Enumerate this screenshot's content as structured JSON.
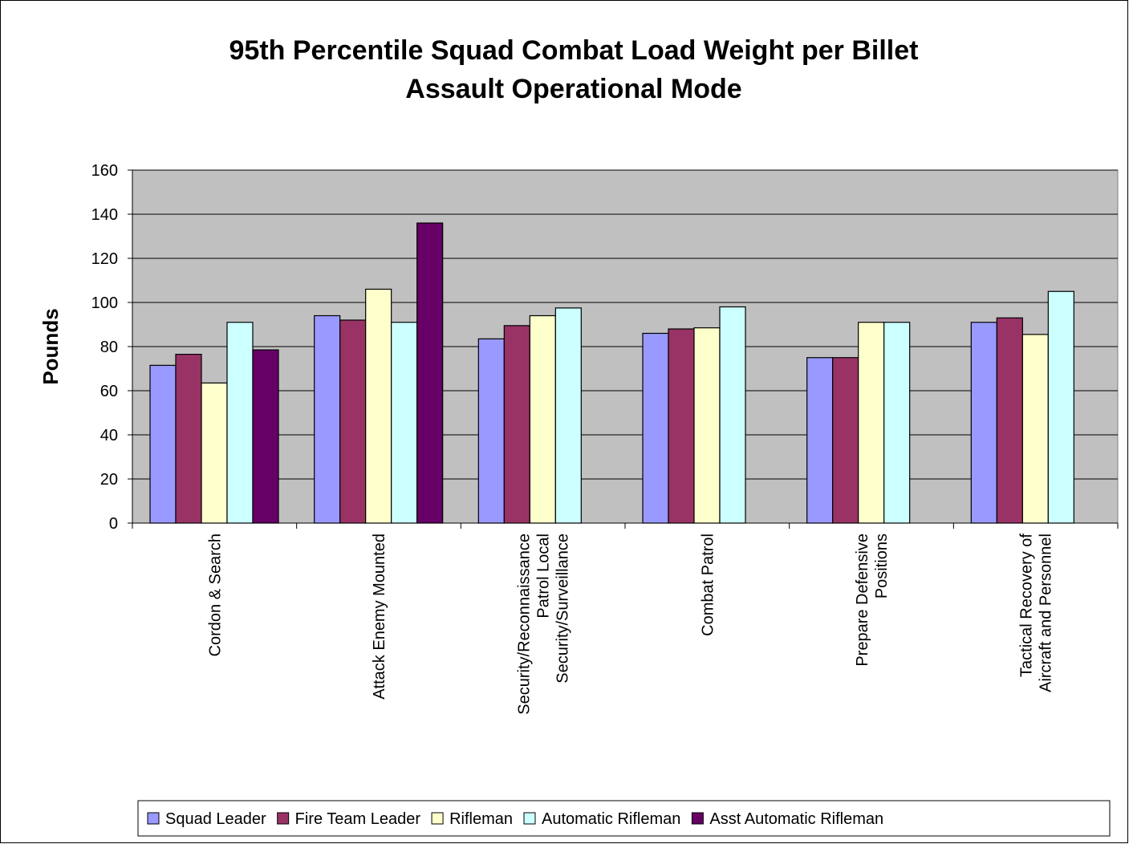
{
  "chart_data": {
    "type": "bar",
    "title": [
      "95th Percentile Squad Combat Load Weight per Billet",
      "Assault Operational Mode"
    ],
    "ylabel": "Pounds",
    "categories": [
      "Cordon & Search",
      "Attack Enemy Mounted",
      "Security/Reconnaissance Patrol Local Security/Surveillance",
      "Combat Patrol",
      "Prepare Defensive Positions",
      "Tactical Recovery of Aircraft and Personnel"
    ],
    "series": [
      {
        "name": "Squad Leader",
        "color": "#9999ff",
        "values": [
          71.5,
          94,
          83.5,
          86,
          75,
          91
        ]
      },
      {
        "name": "Fire Team Leader",
        "color": "#993366",
        "values": [
          76.5,
          92,
          89.5,
          88,
          75,
          93
        ]
      },
      {
        "name": "Rifleman",
        "color": "#ffffcc",
        "values": [
          63.5,
          106,
          94,
          88.5,
          91,
          85.5
        ]
      },
      {
        "name": "Automatic Rifleman",
        "color": "#ccffff",
        "values": [
          91,
          91,
          97.5,
          98,
          91,
          105
        ]
      },
      {
        "name": "Asst Automatic Rifleman",
        "color": "#660066",
        "values": [
          78.5,
          136,
          null,
          null,
          null,
          null
        ]
      }
    ],
    "ylim": [
      0,
      160
    ],
    "yticks": [
      0,
      20,
      40,
      60,
      80,
      100,
      120,
      140,
      160
    ],
    "grid": true,
    "plot_background": "#c0c0c0"
  }
}
